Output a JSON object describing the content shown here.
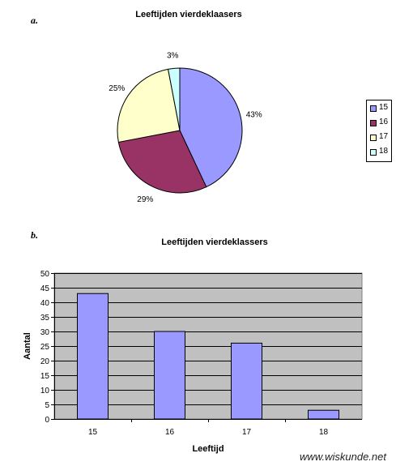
{
  "chart_data": [
    {
      "panel": "a.",
      "type": "pie",
      "title": "Leeftijden vierdeklaasers",
      "slices": [
        {
          "label": "15",
          "value": 43,
          "pct_label": "43%",
          "color": "#9999ff"
        },
        {
          "label": "16",
          "value": 29,
          "pct_label": "29%",
          "color": "#993366"
        },
        {
          "label": "17",
          "value": 25,
          "pct_label": "25%",
          "color": "#ffffcc"
        },
        {
          "label": "18",
          "value": 3,
          "pct_label": "3%",
          "color": "#ccffff"
        }
      ],
      "legend": [
        "15",
        "16",
        "17",
        "18"
      ],
      "legend_position": "right"
    },
    {
      "panel": "b.",
      "type": "bar",
      "title": "Leeftijden vierdeklassers",
      "categories": [
        "15",
        "16",
        "17",
        "18"
      ],
      "values": [
        43,
        30,
        26,
        3
      ],
      "xlabel": "Leeftijd",
      "ylabel": "Aantal",
      "ylim": [
        0,
        50
      ],
      "yticks": [
        "0",
        "5",
        "10",
        "15",
        "20",
        "25",
        "30",
        "35",
        "40",
        "45",
        "50"
      ],
      "grid": true,
      "bar_color": "#9999ff",
      "plot_background": "#c0c0c0"
    }
  ],
  "watermark": "www.wiskunde.net"
}
